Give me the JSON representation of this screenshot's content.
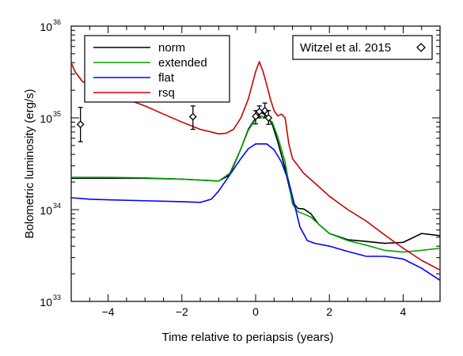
{
  "chart_data": {
    "type": "line",
    "xlabel": "Time relative to periapsis (years)",
    "ylabel": "Bolometric luminosity (erg/s)",
    "x_scale": "linear",
    "y_scale": "log",
    "xlim": [
      -5,
      5
    ],
    "ylim": [
      1e+33,
      1e+36
    ],
    "x_ticks": [
      {
        "value": -4,
        "label": "−4"
      },
      {
        "value": -2,
        "label": "−2"
      },
      {
        "value": 0,
        "label": "0"
      },
      {
        "value": 2,
        "label": "2"
      },
      {
        "value": 4,
        "label": "4"
      }
    ],
    "y_ticks": [
      {
        "value": 1e+33,
        "base": "10",
        "exp": "33"
      },
      {
        "value": 1e+34,
        "base": "10",
        "exp": "34"
      },
      {
        "value": 1e+35,
        "base": "10",
        "exp": "35"
      },
      {
        "value": 1e+36,
        "base": "10",
        "exp": "36"
      }
    ],
    "grid": false,
    "legend_position": "top-left",
    "series": [
      {
        "name": "norm",
        "color": "#000000",
        "x": [
          -5,
          -4,
          -3,
          -2,
          -1.5,
          -1,
          -0.7,
          -0.4,
          -0.2,
          0,
          0.15,
          0.3,
          0.45,
          0.6,
          0.8,
          1,
          1.15,
          1.3,
          1.5,
          1.7,
          2,
          2.5,
          3,
          3.5,
          4,
          4.5,
          5
        ],
        "y": [
          2.2e+34,
          2.2e+34,
          2.2e+34,
          2.15e+34,
          2.1e+34,
          2.05e+34,
          2.4e+34,
          4.6e+34,
          7.5e+34,
          1e+35,
          1.15e+35,
          1.05e+35,
          8.5e+34,
          5.5e+34,
          2.8e+34,
          1.2e+34,
          1.03e+34,
          1.02e+34,
          9e+33,
          7e+33,
          5.5e+33,
          4.7e+33,
          4.5e+33,
          4.3e+33,
          4.4e+33,
          5.5e+33,
          5.2e+33
        ]
      },
      {
        "name": "extended",
        "color": "#00a000",
        "x": [
          -5,
          -4,
          -3,
          -2,
          -1.5,
          -1,
          -0.7,
          -0.4,
          -0.2,
          0,
          0.15,
          0.3,
          0.45,
          0.6,
          0.8,
          1,
          1.15,
          1.3,
          1.5,
          1.7,
          2,
          2.5,
          3,
          3.5,
          4,
          4.5,
          5
        ],
        "y": [
          2.25e+34,
          2.25e+34,
          2.22e+34,
          2.15e+34,
          2.1e+34,
          2.05e+34,
          2.5e+34,
          4.6e+34,
          7.3e+34,
          9.7e+34,
          1.05e+35,
          1e+35,
          9e+34,
          6.2e+34,
          3.3e+34,
          1.15e+34,
          9.5e+33,
          9e+33,
          8.3e+33,
          7e+33,
          5.5e+33,
          4.6e+33,
          4.1e+33,
          3.6e+33,
          3.45e+33,
          3.6e+33,
          3.8e+33
        ]
      },
      {
        "name": "flat",
        "color": "#0000ff",
        "x": [
          -5,
          -4.5,
          -4,
          -3,
          -2,
          -1.5,
          -1.2,
          -1,
          -0.7,
          -0.4,
          -0.2,
          0,
          0.3,
          0.5,
          0.7,
          0.9,
          1.05,
          1.2,
          1.4,
          1.6,
          2,
          2.5,
          3,
          3.5,
          4,
          4.5,
          5
        ],
        "y": [
          1.35e+34,
          1.3e+34,
          1.28e+34,
          1.25e+34,
          1.22e+34,
          1.2e+34,
          1.3e+34,
          1.6e+34,
          2.4e+34,
          3.6e+34,
          4.6e+34,
          5.2e+34,
          5.2e+34,
          4.5e+34,
          3.3e+34,
          2e+34,
          1.15e+34,
          6.5e+33,
          4.6e+33,
          4.3e+33,
          4e+33,
          3.5e+33,
          3.1e+33,
          3.1e+33,
          2.9e+33,
          2.3e+33,
          1.7e+33
        ]
      },
      {
        "name": "rsq",
        "color": "#cc0000",
        "x": [
          -5,
          -4.9,
          -4.7,
          -4.4,
          -4,
          -3.5,
          -3,
          -2.5,
          -2,
          -1.5,
          -1,
          -0.8,
          -0.6,
          -0.4,
          -0.2,
          0,
          0.1,
          0.2,
          0.3,
          0.4,
          0.5,
          0.6,
          0.7,
          0.8,
          0.9,
          1,
          1.3,
          1.7,
          2,
          2.5,
          3,
          3.5,
          4,
          4.5,
          5
        ],
        "y": [
          4e+35,
          3.2e+35,
          2.5e+35,
          2.2e+35,
          1.9e+35,
          1.6e+35,
          1.35e+35,
          1.1e+35,
          9e+34,
          7.5e+34,
          6.7e+34,
          6.8e+34,
          7.5e+34,
          1e+35,
          1.6e+35,
          3.2e+35,
          4.1e+35,
          3.2e+35,
          2.3e+35,
          1.6e+35,
          1.2e+35,
          1.05e+35,
          1.1e+35,
          1e+35,
          5.2e+34,
          3.6e+34,
          2.5e+34,
          1.8e+34,
          1.4e+34,
          1e+34,
          7.5e+33,
          5.3e+33,
          3.8e+33,
          2.8e+33,
          2.2e+33
        ]
      }
    ],
    "observations": {
      "name": "Witzel et al. 2015",
      "points": [
        {
          "x": -4.75,
          "y": 8.5e+34,
          "ylo": 5.5e+34,
          "yhi": 1.3e+35
        },
        {
          "x": -1.7,
          "y": 1.03e+35,
          "ylo": 7.5e+34,
          "yhi": 1.35e+35
        },
        {
          "x": 0.0,
          "y": 1.04e+35,
          "ylo": 8.6e+34,
          "yhi": 1.2e+35
        },
        {
          "x": 0.1,
          "y": 1.17e+35,
          "ylo": 1e+35,
          "yhi": 1.35e+35
        },
        {
          "x": 0.25,
          "y": 1.2e+35,
          "ylo": 1e+35,
          "yhi": 1.45e+35
        },
        {
          "x": 0.35,
          "y": 1e+35,
          "ylo": 8.5e+34,
          "yhi": 1.2e+35
        }
      ]
    }
  }
}
